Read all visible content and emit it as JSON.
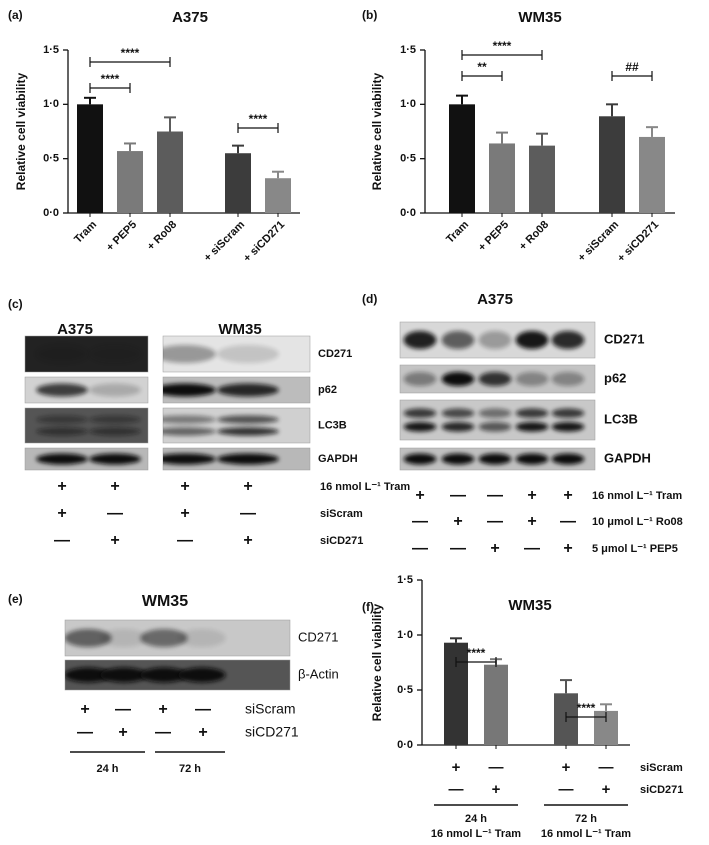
{
  "chart_data": [
    {
      "type": "bar",
      "panel": "(a)",
      "title": "A375",
      "ylabel": "Relative cell viability",
      "categories": [
        "Tram",
        "+ PEP5",
        "+ Ro08",
        "+ siScram",
        "+ siCD271"
      ],
      "values": [
        1.0,
        0.57,
        0.75,
        0.55,
        0.32
      ],
      "errors": [
        0.06,
        0.07,
        0.13,
        0.07,
        0.06
      ],
      "colors": [
        "#111111",
        "#7a7a7a",
        "#5c5c5c",
        "#3c3c3c",
        "#888888"
      ],
      "ylim": [
        0,
        1.5
      ],
      "yticks": [
        {
          "value": 0,
          "label": "0·0"
        },
        {
          "value": 0.5,
          "label": "0·5"
        },
        {
          "value": 1,
          "label": "1·0"
        },
        {
          "value": 1.5,
          "label": "1·5"
        }
      ],
      "annotations": [
        {
          "label": "****",
          "from": 0,
          "to": 1
        },
        {
          "label": "****",
          "from": 0,
          "to": 2
        },
        {
          "label": "****",
          "from": 3,
          "to": 4
        }
      ]
    },
    {
      "type": "bar",
      "panel": "(b)",
      "title": "WM35",
      "ylabel": "Relative cell viability",
      "categories": [
        "Tram",
        "+ PEP5",
        "+ Ro08",
        "+ siScram",
        "+ siCD271"
      ],
      "values": [
        1.0,
        0.64,
        0.62,
        0.89,
        0.7
      ],
      "errors": [
        0.08,
        0.1,
        0.11,
        0.11,
        0.09
      ],
      "colors": [
        "#111111",
        "#7a7a7a",
        "#5c5c5c",
        "#3c3c3c",
        "#888888"
      ],
      "ylim": [
        0,
        1.5
      ],
      "yticks": [
        {
          "value": 0,
          "label": "0·0"
        },
        {
          "value": 0.5,
          "label": "0·5"
        },
        {
          "value": 1,
          "label": "1·0"
        },
        {
          "value": 1.5,
          "label": "1·5"
        }
      ],
      "annotations": [
        {
          "label": "**",
          "from": 0,
          "to": 1
        },
        {
          "label": "****",
          "from": 0,
          "to": 2
        },
        {
          "label": "##",
          "from": 3,
          "to": 4
        }
      ]
    },
    {
      "type": "bar",
      "panel": "(f)",
      "title": "WM35",
      "ylabel": "Relative cell viability",
      "categories": [
        null,
        null,
        null,
        null
      ],
      "values": [
        0.93,
        0.73,
        0.47,
        0.31
      ],
      "errors": [
        0.04,
        0.05,
        0.12,
        0.06
      ],
      "colors": [
        "#333333",
        "#777777",
        "#555555",
        "#888888"
      ],
      "ylim": [
        0,
        1.5
      ],
      "yticks": [
        {
          "value": 0,
          "label": "0·0"
        },
        {
          "value": 0.5,
          "label": "0·5"
        },
        {
          "value": 1,
          "label": "1·0"
        },
        {
          "value": 1.5,
          "label": "1·5"
        }
      ],
      "annotations": [
        {
          "label": "****",
          "from": 0,
          "to": 1
        },
        {
          "label": "****",
          "from": 2,
          "to": 3
        }
      ],
      "conditions": [
        {
          "name": "siScram",
          "marks": [
            "+",
            "—",
            "+",
            "—"
          ]
        },
        {
          "name": "siCD271",
          "marks": [
            "—",
            "+",
            "—",
            "+"
          ]
        }
      ],
      "groups": [
        {
          "label": "24 h",
          "sublabel": "16 nmol L⁻¹ Tram",
          "from": 0,
          "to": 1
        },
        {
          "label": "72 h",
          "sublabel": "16 nmol L⁻¹ Tram",
          "from": 2,
          "to": 3
        }
      ]
    }
  ],
  "blots": [
    {
      "panel": "(c)",
      "titles": [
        "A375",
        "WM35"
      ],
      "bands": [
        "CD271",
        "p62",
        "LC3B",
        "GAPDH"
      ],
      "conditions": [
        {
          "name": "16 nmol L⁻¹ Tram",
          "marks": [
            "+",
            "+",
            "+",
            "+"
          ]
        },
        {
          "name": "siScram",
          "marks": [
            "+",
            "—",
            "+",
            "—"
          ]
        },
        {
          "name": "siCD271",
          "marks": [
            "—",
            "+",
            "—",
            "+"
          ]
        }
      ]
    },
    {
      "panel": "(d)",
      "titles": [
        "A375"
      ],
      "bands": [
        "CD271",
        "p62",
        "LC3B",
        "GAPDH"
      ],
      "conditions": [
        {
          "name": "16 nmol L⁻¹ Tram",
          "marks": [
            "+",
            "—",
            "—",
            "+",
            "+"
          ]
        },
        {
          "name": "10 μmol L⁻¹ Ro08",
          "marks": [
            "—",
            "+",
            "—",
            "+",
            "—"
          ]
        },
        {
          "name": "5 μmol L⁻¹ PEP5",
          "marks": [
            "—",
            "—",
            "+",
            "—",
            "+"
          ]
        }
      ]
    },
    {
      "panel": "(e)",
      "titles": [
        "WM35"
      ],
      "bands": [
        "CD271",
        "β-Actin"
      ],
      "conditions": [
        {
          "name": "siScram",
          "marks": [
            "+",
            "—",
            "+",
            "—"
          ]
        },
        {
          "name": "siCD271",
          "marks": [
            "—",
            "+",
            "—",
            "+"
          ]
        }
      ],
      "groups": [
        {
          "label": "24 h"
        },
        {
          "label": "72 h"
        }
      ]
    }
  ]
}
